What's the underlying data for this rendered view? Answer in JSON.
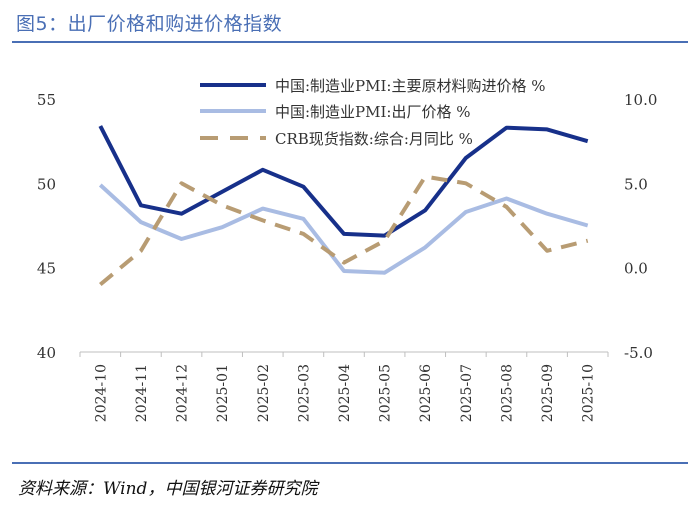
{
  "header": {
    "title": "图5：出厂价格和购进价格指数"
  },
  "footer": {
    "source": "资料来源：Wind，中国银河证券研究院"
  },
  "colors": {
    "accent": "#4a6fb5",
    "series1": "#17308a",
    "series2": "#a9bce3",
    "series3": "#b89c73"
  },
  "chart_data": {
    "type": "line",
    "title": "出厂价格和购进价格指数",
    "categories": [
      "2024-10",
      "2024-11",
      "2024-12",
      "2025-01",
      "2025-02",
      "2025-03",
      "2025-04",
      "2025-05",
      "2025-06",
      "2025-07",
      "2025-08",
      "2025-09",
      "2025-10"
    ],
    "left_axis": {
      "min": 40,
      "max": 55,
      "ticks": [
        "40",
        "45",
        "50",
        "55"
      ]
    },
    "right_axis": {
      "min": -5.0,
      "max": 10.0,
      "ticks": [
        "-5.0",
        "0.0",
        "5.0",
        "10.0"
      ]
    },
    "series": [
      {
        "name": "中国:制造业PMI:主要原材料购进价格 %",
        "axis": "left",
        "style": "solid-thick",
        "color": "#17308a",
        "values": [
          53.4,
          48.7,
          48.2,
          49.5,
          50.8,
          49.8,
          47.0,
          46.9,
          48.4,
          51.5,
          53.3,
          53.2,
          52.5
        ]
      },
      {
        "name": "中国:制造业PMI:出厂价格 %",
        "axis": "left",
        "style": "solid",
        "color": "#a9bce3",
        "values": [
          49.9,
          47.7,
          46.7,
          47.4,
          48.5,
          47.9,
          44.8,
          44.7,
          46.2,
          48.3,
          49.1,
          48.2,
          47.5
        ]
      },
      {
        "name": "CRB现货指数:综合:月同比 %",
        "axis": "right",
        "style": "dashed",
        "color": "#b89c73",
        "values": [
          -1.0,
          1.0,
          5.0,
          3.7,
          2.8,
          2.0,
          0.3,
          1.6,
          5.4,
          5.0,
          3.6,
          1.0,
          1.6
        ]
      }
    ]
  }
}
